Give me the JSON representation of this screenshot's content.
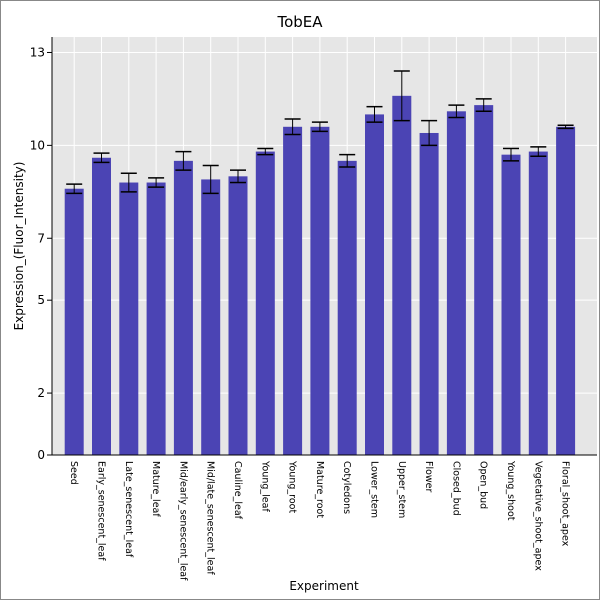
{
  "chart_data": {
    "type": "bar",
    "title": "TobEA",
    "xlabel": "Experiment",
    "ylabel": "Expression_(Fluor_Intensity)",
    "ylim": [
      0,
      13.5
    ],
    "yticks": [
      0,
      2,
      5,
      7,
      10,
      13
    ],
    "grid": true,
    "bar_color": "#4b44b4",
    "plot_background": "#e6e6e6",
    "categories": [
      "Seed",
      "Early_senescent_leaf",
      "Late_senescent_leaf",
      "Mature_leaf",
      "Mid/early_senescent_leaf",
      "Mid/late_senescent_leaf",
      "Cauline_leaf",
      "Young_leaf",
      "Young_root",
      "Mature_root",
      "Cotyledons",
      "Lower_stem",
      "Upper_stem",
      "Flower",
      "Closed_bud",
      "Open_bud",
      "Young_shoot",
      "Vegetative_shoot_apex",
      "Floral_shoot_apex"
    ],
    "values": [
      8.6,
      9.6,
      8.8,
      8.8,
      9.5,
      8.9,
      9.0,
      9.8,
      10.6,
      10.6,
      9.5,
      11.0,
      11.6,
      10.4,
      11.1,
      11.3,
      9.7,
      9.8,
      10.6
    ],
    "errors": [
      0.15,
      0.15,
      0.3,
      0.15,
      0.3,
      0.45,
      0.2,
      0.1,
      0.25,
      0.15,
      0.2,
      0.25,
      0.8,
      0.4,
      0.2,
      0.2,
      0.2,
      0.15,
      0.05
    ]
  }
}
